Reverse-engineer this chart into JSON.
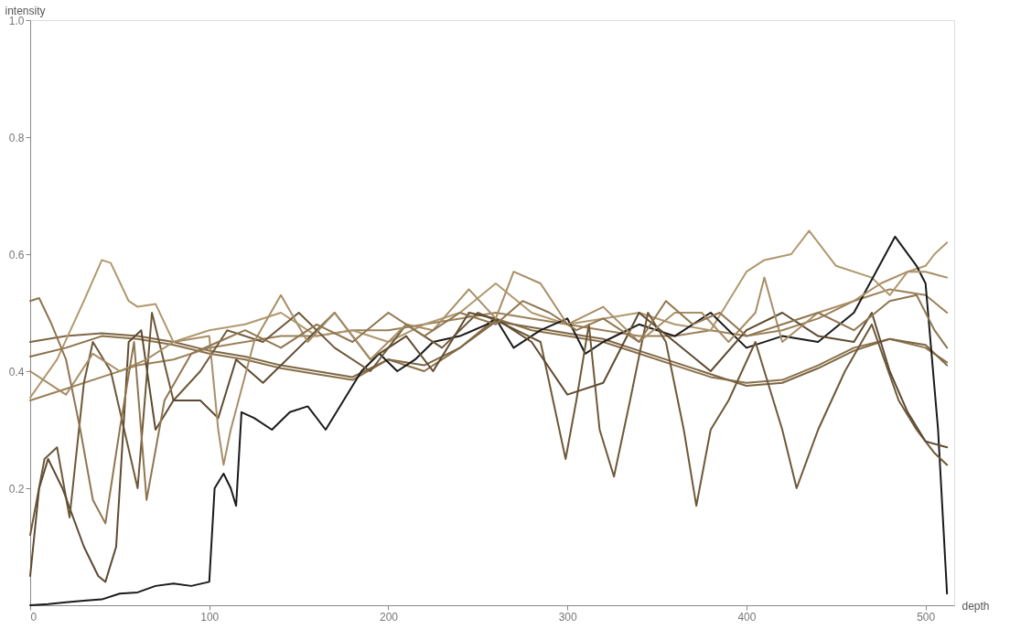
{
  "chart_data": {
    "type": "line",
    "xlabel": "depth",
    "ylabel": "intensity",
    "xlim": [
      0,
      516
    ],
    "ylim": [
      0,
      1
    ],
    "xticks": [
      0,
      100,
      200,
      300,
      400,
      500
    ],
    "yticks": [
      0.2,
      0.4,
      0.6,
      0.8,
      {
        "value": 1,
        "label": "1.0"
      }
    ],
    "grid": false,
    "legend": false,
    "marker": "none",
    "line_style": "solid",
    "series": [
      {
        "color": "#8a7048",
        "x": [
          0,
          20,
          40,
          60,
          80,
          100,
          120,
          140,
          160,
          180,
          200,
          220,
          240,
          260,
          280,
          300,
          320,
          340,
          360,
          380,
          400,
          420,
          440,
          460,
          480,
          500,
          512
        ],
        "values": [
          0.425,
          0.44,
          0.46,
          0.455,
          0.445,
          0.43,
          0.42,
          0.405,
          0.395,
          0.385,
          0.42,
          0.4,
          0.44,
          0.49,
          0.47,
          0.46,
          0.45,
          0.43,
          0.41,
          0.39,
          0.38,
          0.385,
          0.41,
          0.44,
          0.455,
          0.44,
          0.415
        ]
      },
      {
        "color": "#7e6644",
        "x": [
          0,
          20,
          40,
          60,
          80,
          100,
          120,
          140,
          160,
          180,
          200,
          220,
          240,
          260,
          280,
          300,
          320,
          340,
          360,
          380,
          400,
          420,
          440,
          460,
          480,
          500,
          512
        ],
        "values": [
          0.45,
          0.46,
          0.465,
          0.46,
          0.45,
          0.435,
          0.425,
          0.41,
          0.4,
          0.39,
          0.42,
          0.41,
          0.44,
          0.485,
          0.475,
          0.465,
          0.455,
          0.435,
          0.415,
          0.395,
          0.375,
          0.38,
          0.405,
          0.435,
          0.455,
          0.445,
          0.41
        ]
      },
      {
        "color": "#9a8058",
        "x": [
          0,
          20,
          40,
          60,
          80,
          100,
          120,
          140,
          160,
          180,
          200,
          220,
          240,
          260,
          280,
          300,
          320,
          340,
          360,
          380,
          400,
          420,
          440,
          460,
          480,
          500,
          512
        ],
        "values": [
          0.35,
          0.37,
          0.39,
          0.41,
          0.42,
          0.44,
          0.45,
          0.46,
          0.46,
          0.47,
          0.47,
          0.48,
          0.49,
          0.5,
          0.49,
          0.48,
          0.47,
          0.46,
          0.46,
          0.47,
          0.46,
          0.47,
          0.49,
          0.52,
          0.54,
          0.53,
          0.5
        ]
      },
      {
        "color": "#b0986e",
        "x": [
          0,
          15,
          30,
          40,
          45,
          55,
          60,
          70,
          80,
          100,
          120,
          140,
          160,
          180,
          200,
          220,
          240,
          260,
          280,
          300,
          320,
          340,
          360,
          380,
          400,
          410,
          425,
          435,
          450,
          470,
          480,
          490,
          500,
          505,
          512
        ],
        "values": [
          0.355,
          0.42,
          0.52,
          0.59,
          0.585,
          0.52,
          0.51,
          0.515,
          0.45,
          0.47,
          0.48,
          0.5,
          0.46,
          0.47,
          0.45,
          0.48,
          0.5,
          0.55,
          0.5,
          0.48,
          0.49,
          0.5,
          0.48,
          0.47,
          0.57,
          0.59,
          0.6,
          0.64,
          0.58,
          0.56,
          0.53,
          0.57,
          0.58,
          0.6,
          0.62
        ]
      },
      {
        "color": "#1a1a1a",
        "x": [
          0,
          10,
          20,
          30,
          40,
          50,
          60,
          70,
          80,
          90,
          100,
          103,
          108,
          112,
          115,
          118,
          125,
          135,
          145,
          155,
          165,
          175,
          185,
          195,
          205,
          215,
          225,
          240,
          255,
          260,
          270,
          285,
          300,
          310,
          320,
          340,
          360,
          380,
          400,
          420,
          440,
          460,
          483,
          495,
          500,
          507,
          512
        ],
        "values": [
          0,
          0.002,
          0.005,
          0.008,
          0.01,
          0.02,
          0.022,
          0.033,
          0.037,
          0.033,
          0.04,
          0.2,
          0.225,
          0.2,
          0.17,
          0.33,
          0.32,
          0.3,
          0.33,
          0.34,
          0.3,
          0.35,
          0.4,
          0.43,
          0.4,
          0.42,
          0.45,
          0.46,
          0.48,
          0.49,
          0.44,
          0.47,
          0.49,
          0.43,
          0.45,
          0.48,
          0.46,
          0.5,
          0.44,
          0.46,
          0.45,
          0.5,
          0.63,
          0.58,
          0.55,
          0.3,
          0.02
        ]
      },
      {
        "color": "#6e5838",
        "x": [
          0,
          8,
          15,
          22,
          30,
          35,
          45,
          60,
          68,
          80,
          95,
          110,
          130,
          150,
          170,
          190,
          210,
          230,
          250,
          265,
          285,
          299,
          305,
          312,
          318,
          326,
          335,
          345,
          355,
          365,
          372,
          380,
          390,
          405,
          420,
          428,
          440,
          455,
          470,
          485,
          495,
          505,
          512
        ],
        "values": [
          0.12,
          0.25,
          0.27,
          0.15,
          0.38,
          0.45,
          0.4,
          0.2,
          0.5,
          0.35,
          0.4,
          0.47,
          0.45,
          0.5,
          0.44,
          0.4,
          0.48,
          0.44,
          0.5,
          0.48,
          0.45,
          0.25,
          0.35,
          0.48,
          0.3,
          0.22,
          0.35,
          0.5,
          0.45,
          0.3,
          0.17,
          0.3,
          0.35,
          0.45,
          0.3,
          0.2,
          0.3,
          0.4,
          0.48,
          0.35,
          0.3,
          0.26,
          0.24
        ]
      },
      {
        "color": "#5e4a30",
        "x": [
          0,
          5,
          10,
          18,
          30,
          38,
          42,
          48,
          55,
          62,
          70,
          80,
          95,
          105,
          115,
          130,
          150,
          170,
          190,
          210,
          225,
          245,
          260,
          280,
          300,
          320,
          340,
          360,
          380,
          400,
          420,
          440,
          460,
          470,
          480,
          490,
          500,
          512
        ],
        "values": [
          0.05,
          0.2,
          0.25,
          0.2,
          0.1,
          0.05,
          0.04,
          0.1,
          0.45,
          0.47,
          0.3,
          0.35,
          0.35,
          0.32,
          0.42,
          0.38,
          0.44,
          0.5,
          0.42,
          0.46,
          0.4,
          0.5,
          0.49,
          0.45,
          0.36,
          0.38,
          0.5,
          0.45,
          0.4,
          0.47,
          0.5,
          0.46,
          0.45,
          0.5,
          0.4,
          0.33,
          0.28,
          0.27
        ]
      },
      {
        "color": "#a88e66",
        "x": [
          0,
          10,
          20,
          35,
          50,
          65,
          80,
          100,
          105,
          108,
          112,
          125,
          140,
          155,
          170,
          190,
          210,
          225,
          245,
          260,
          270,
          285,
          300,
          320,
          340,
          360,
          375,
          390,
          405,
          410,
          420,
          440,
          460,
          475,
          490,
          500,
          512
        ],
        "values": [
          0.4,
          0.38,
          0.36,
          0.43,
          0.4,
          0.42,
          0.45,
          0.46,
          0.3,
          0.24,
          0.3,
          0.45,
          0.53,
          0.45,
          0.5,
          0.42,
          0.48,
          0.47,
          0.54,
          0.49,
          0.57,
          0.55,
          0.48,
          0.51,
          0.45,
          0.5,
          0.5,
          0.45,
          0.5,
          0.56,
          0.45,
          0.5,
          0.52,
          0.55,
          0.57,
          0.57,
          0.56
        ]
      },
      {
        "color": "#8f7650",
        "x": [
          0,
          5,
          12,
          20,
          28,
          35,
          42,
          50,
          58,
          65,
          75,
          90,
          105,
          120,
          140,
          160,
          180,
          200,
          220,
          240,
          260,
          275,
          290,
          305,
          320,
          340,
          355,
          370,
          385,
          400,
          420,
          440,
          460,
          480,
          495,
          505,
          512
        ],
        "values": [
          0.52,
          0.525,
          0.48,
          0.42,
          0.3,
          0.18,
          0.14,
          0.3,
          0.45,
          0.18,
          0.35,
          0.43,
          0.45,
          0.47,
          0.44,
          0.48,
          0.45,
          0.5,
          0.46,
          0.5,
          0.48,
          0.52,
          0.5,
          0.47,
          0.49,
          0.45,
          0.52,
          0.48,
          0.5,
          0.46,
          0.48,
          0.5,
          0.47,
          0.52,
          0.53,
          0.47,
          0.44
        ]
      }
    ]
  }
}
